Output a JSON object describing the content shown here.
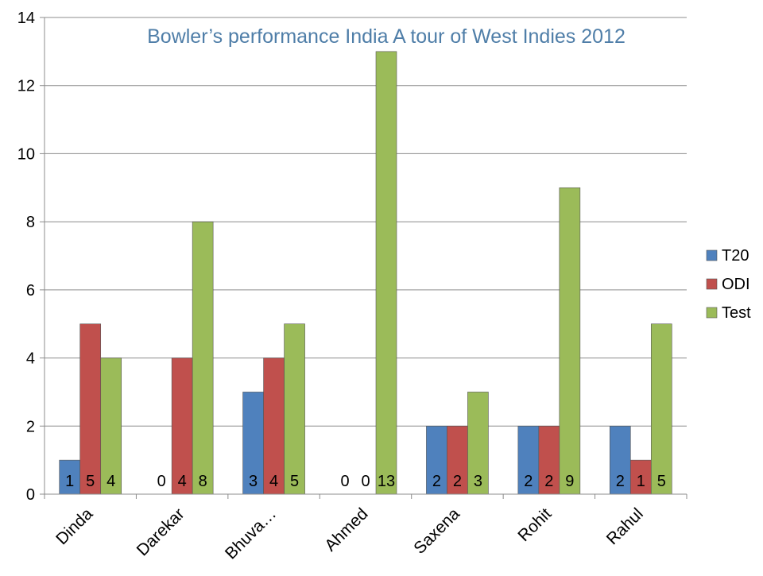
{
  "chart_data": {
    "type": "bar",
    "title": "Bowler’s performance India A tour of West Indies 2012",
    "categories": [
      "Dinda",
      "Darekar",
      "Bhuva…",
      "Ahmed",
      "Saxena",
      "Rohit",
      "Rahul"
    ],
    "series": [
      {
        "name": "T20",
        "values": [
          1,
          0,
          3,
          0,
          2,
          2,
          2
        ],
        "color": "#4f81bd"
      },
      {
        "name": "ODI",
        "values": [
          5,
          4,
          4,
          0,
          2,
          2,
          1
        ],
        "color": "#c0504d"
      },
      {
        "name": "Test",
        "values": [
          4,
          8,
          5,
          13,
          3,
          9,
          5
        ],
        "color": "#9bbb59"
      }
    ],
    "y_ticks": [
      "0",
      "2",
      "4",
      "6",
      "8",
      "10",
      "12",
      "14"
    ],
    "ylim": [
      0,
      14
    ],
    "grid": true,
    "legend": "right",
    "data_labels": true,
    "title_color": "#4f7ea8"
  }
}
